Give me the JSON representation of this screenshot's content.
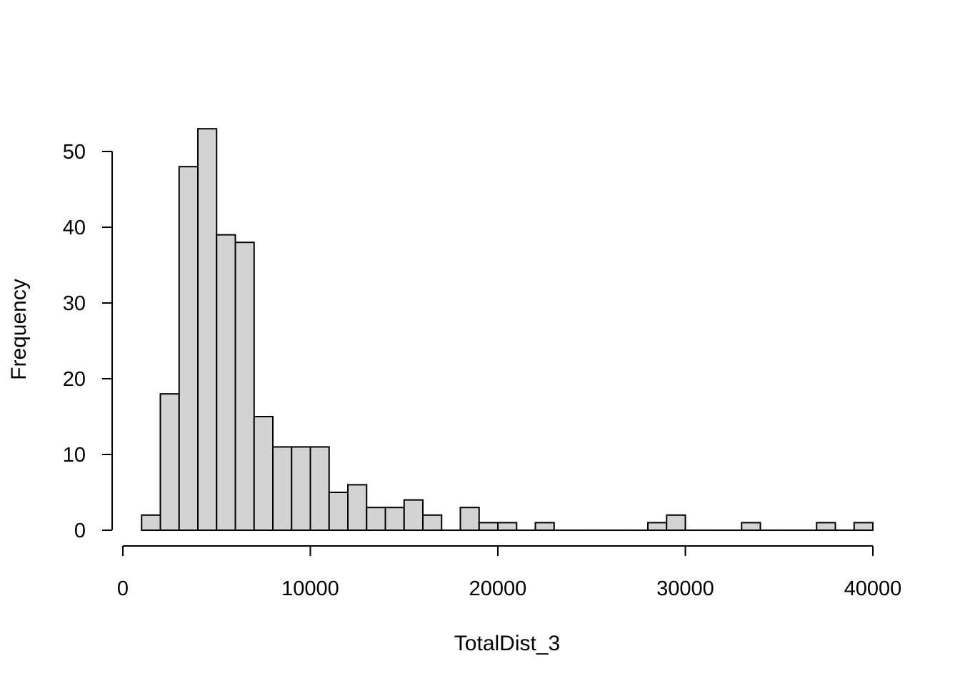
{
  "chart_data": {
    "type": "bar",
    "histogram": true,
    "bin_width": 1000,
    "bins": [
      {
        "start": 1000,
        "end": 2000,
        "count": 2
      },
      {
        "start": 2000,
        "end": 3000,
        "count": 18
      },
      {
        "start": 3000,
        "end": 4000,
        "count": 48
      },
      {
        "start": 4000,
        "end": 5000,
        "count": 53
      },
      {
        "start": 5000,
        "end": 6000,
        "count": 39
      },
      {
        "start": 6000,
        "end": 7000,
        "count": 38
      },
      {
        "start": 7000,
        "end": 8000,
        "count": 15
      },
      {
        "start": 8000,
        "end": 9000,
        "count": 11
      },
      {
        "start": 9000,
        "end": 10000,
        "count": 11
      },
      {
        "start": 10000,
        "end": 11000,
        "count": 11
      },
      {
        "start": 11000,
        "end": 12000,
        "count": 5
      },
      {
        "start": 12000,
        "end": 13000,
        "count": 6
      },
      {
        "start": 13000,
        "end": 14000,
        "count": 3
      },
      {
        "start": 14000,
        "end": 15000,
        "count": 3
      },
      {
        "start": 15000,
        "end": 16000,
        "count": 4
      },
      {
        "start": 16000,
        "end": 17000,
        "count": 2
      },
      {
        "start": 17000,
        "end": 18000,
        "count": 0
      },
      {
        "start": 18000,
        "end": 19000,
        "count": 3
      },
      {
        "start": 19000,
        "end": 20000,
        "count": 1
      },
      {
        "start": 20000,
        "end": 21000,
        "count": 1
      },
      {
        "start": 21000,
        "end": 22000,
        "count": 0
      },
      {
        "start": 22000,
        "end": 23000,
        "count": 1
      },
      {
        "start": 23000,
        "end": 24000,
        "count": 0
      },
      {
        "start": 24000,
        "end": 25000,
        "count": 0
      },
      {
        "start": 25000,
        "end": 26000,
        "count": 0
      },
      {
        "start": 26000,
        "end": 27000,
        "count": 0
      },
      {
        "start": 27000,
        "end": 28000,
        "count": 0
      },
      {
        "start": 28000,
        "end": 29000,
        "count": 1
      },
      {
        "start": 29000,
        "end": 30000,
        "count": 2
      },
      {
        "start": 30000,
        "end": 31000,
        "count": 0
      },
      {
        "start": 31000,
        "end": 32000,
        "count": 0
      },
      {
        "start": 32000,
        "end": 33000,
        "count": 0
      },
      {
        "start": 33000,
        "end": 34000,
        "count": 1
      },
      {
        "start": 34000,
        "end": 35000,
        "count": 0
      },
      {
        "start": 35000,
        "end": 36000,
        "count": 0
      },
      {
        "start": 36000,
        "end": 37000,
        "count": 0
      },
      {
        "start": 37000,
        "end": 38000,
        "count": 1
      },
      {
        "start": 38000,
        "end": 39000,
        "count": 0
      },
      {
        "start": 39000,
        "end": 40000,
        "count": 1
      }
    ],
    "title": "",
    "xlabel": "TotalDist_3",
    "ylabel": "Frequency",
    "xlim": [
      0,
      40000
    ],
    "ylim": [
      0,
      53
    ],
    "x_ticks": [
      0,
      10000,
      20000,
      30000,
      40000
    ],
    "y_ticks": [
      0,
      10,
      20,
      30,
      40,
      50
    ],
    "grid": false,
    "legend": "none",
    "colors": {
      "bar_fill": "#d3d3d3",
      "bar_stroke": "#000000",
      "axis": "#000000"
    }
  }
}
